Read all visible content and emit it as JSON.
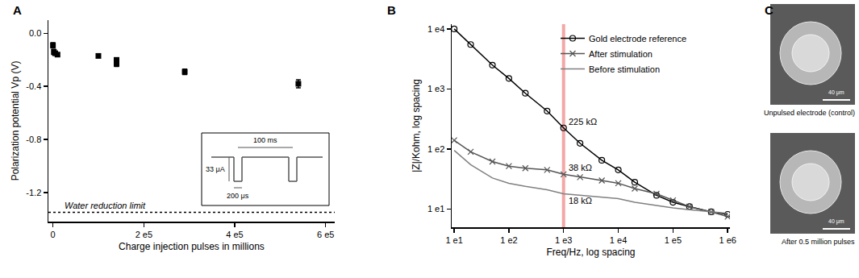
{
  "chart_data": [
    {
      "label": "A",
      "type": "scatter",
      "x_label": "Charge injection pulses in millions",
      "y_label": "Polarization potential Vp (V)",
      "x": [
        0,
        2000,
        5000,
        10000,
        100000,
        140000,
        140000,
        290000,
        540000
      ],
      "values": [
        -0.09,
        -0.14,
        -0.15,
        -0.16,
        -0.17,
        -0.2,
        -0.23,
        -0.29,
        -0.38
      ],
      "error": [
        0.02,
        0.02,
        0.01,
        0.01,
        0.01,
        0.01,
        0.02,
        0.02,
        0.03
      ],
      "color": "#000000",
      "marker": "square",
      "xlim": [
        -10000,
        620000
      ],
      "xticks": [
        0,
        {
          "value": 200000,
          "label": "2 e5"
        },
        {
          "value": 400000,
          "label": "4 e5"
        },
        {
          "value": 600000,
          "label": "6 e5"
        }
      ],
      "ylim": [
        -1.42,
        0.1
      ],
      "yticks": [
        {
          "value": 0,
          "label": "0.0"
        },
        -0.4,
        -0.8,
        -1.2
      ],
      "grid": false,
      "hlines": [
        {
          "y": -1.35,
          "label": "Water reduction limit",
          "line_style": "dotted"
        }
      ],
      "inset": {
        "period": "100 ms",
        "amplitude": "33 μA",
        "width": "200 μs"
      }
    },
    {
      "label": "B",
      "type": "line",
      "log": true,
      "x_label": "Freq/Hz, log spacing",
      "y_label": "|Z|/Kohm, log spacing",
      "x": [
        10,
        20,
        50,
        100,
        200,
        500,
        1000,
        2000,
        5000,
        10000,
        20000,
        50000,
        100000,
        200000,
        500000,
        1000000
      ],
      "series": [
        {
          "name": "Gold electrode reference",
          "color": "#000000",
          "marker": "circle-open",
          "values": [
            10000,
            5500,
            2500,
            1500,
            850,
            430,
            225,
            125,
            65,
            45,
            28,
            17,
            13,
            11,
            9,
            8.2
          ]
        },
        {
          "name": "After stimulation",
          "color": "#555555",
          "marker": "x",
          "values": [
            140,
            90,
            62,
            52,
            48,
            45,
            38,
            34,
            30,
            27,
            22,
            18,
            14,
            11,
            9,
            7.5
          ]
        },
        {
          "name": "Before stimulation",
          "color": "#808080",
          "line_style": "solid",
          "values": [
            95,
            55,
            33,
            27,
            24,
            21,
            18,
            17,
            16,
            15,
            13,
            11.5,
            10.5,
            9.8,
            9,
            8.5
          ]
        }
      ],
      "xlim": [
        9,
        1100000
      ],
      "xticks": [
        {
          "value": 10,
          "label": "1 e1"
        },
        {
          "value": 100,
          "label": "1 e2"
        },
        {
          "value": 1000,
          "label": "1 e3"
        },
        {
          "value": 10000,
          "label": "1 e4"
        },
        {
          "value": 100000,
          "label": "1 e5"
        },
        {
          "value": 1000000,
          "label": "1 e6"
        }
      ],
      "ylim": [
        5,
        12000
      ],
      "yticks": [
        {
          "value": 10,
          "label": "1 e1"
        },
        {
          "value": 100,
          "label": "1 e2"
        },
        {
          "value": 1000,
          "label": "1 e3"
        },
        {
          "value": 10000,
          "label": "1 e4"
        }
      ],
      "legend": "upper right",
      "grid": false,
      "vlines": [
        {
          "x": 1000,
          "color": "#f4a7a7"
        }
      ],
      "annotations": [
        {
          "x": 1000,
          "y": 225,
          "text": "225 kΩ"
        },
        {
          "x": 1000,
          "y": 38,
          "text": "38 kΩ"
        },
        {
          "x": 1000,
          "y": 18,
          "text": "18 kΩ"
        }
      ]
    }
  ],
  "panel_c": {
    "label": "C",
    "images": [
      {
        "caption": "Unpulsed electrode (control)",
        "scale_bar": "40 μm"
      },
      {
        "caption": "After 0.5 million pulses",
        "scale_bar": "40 μm"
      }
    ]
  }
}
